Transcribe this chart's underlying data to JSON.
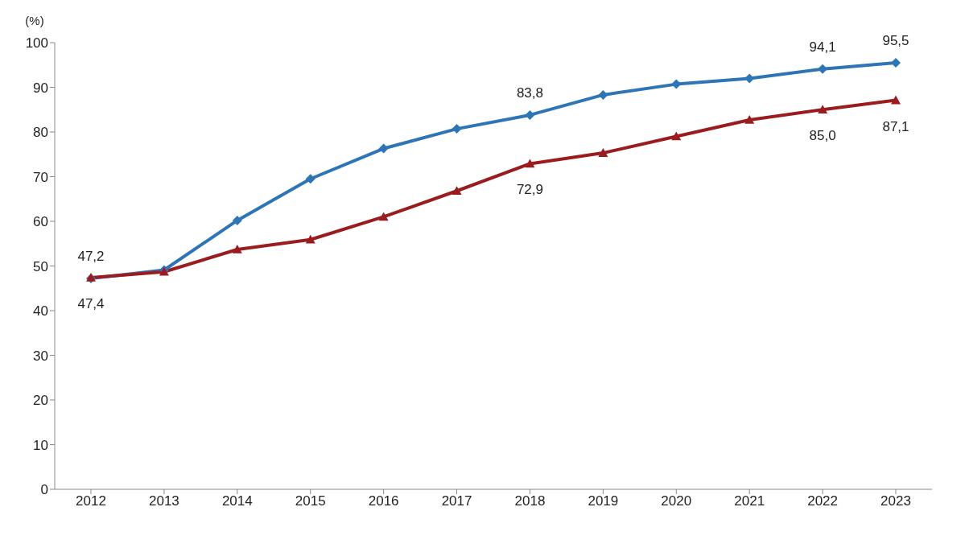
{
  "chart_data": {
    "type": "line",
    "ylabel": "(%)",
    "categories": [
      "2012",
      "2013",
      "2014",
      "2015",
      "2016",
      "2017",
      "2018",
      "2019",
      "2020",
      "2021",
      "2022",
      "2023"
    ],
    "series": [
      {
        "color": "#2e75b6",
        "marker": "diamond",
        "values": [
          47.2,
          49.1,
          60.2,
          69.5,
          76.3,
          80.7,
          83.8,
          88.3,
          90.7,
          92.0,
          94.1,
          95.5
        ],
        "value_labels": [
          "47,2",
          null,
          null,
          null,
          null,
          null,
          "83,8",
          null,
          null,
          null,
          "94,1",
          "95,5"
        ]
      },
      {
        "color": "#9b1c1f",
        "marker": "triangle",
        "values": [
          47.4,
          48.7,
          53.7,
          55.9,
          61.0,
          66.8,
          72.9,
          75.3,
          79.0,
          82.7,
          85.0,
          87.1
        ],
        "value_labels": [
          "47,4",
          null,
          null,
          null,
          null,
          null,
          "72,9",
          null,
          null,
          null,
          "85,0",
          "87,1"
        ]
      }
    ],
    "ylim": [
      0,
      100
    ],
    "yticks": [
      0,
      10,
      20,
      30,
      40,
      50,
      60,
      70,
      80,
      90,
      100
    ],
    "grid": false,
    "legend": false,
    "line_style": "solid"
  }
}
